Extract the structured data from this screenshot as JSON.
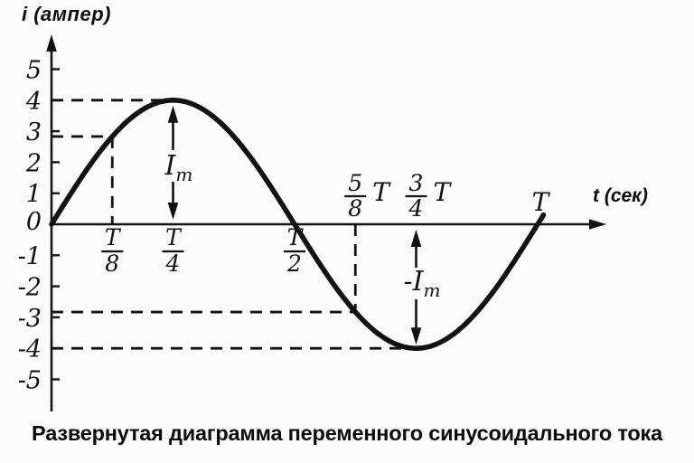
{
  "figure": {
    "y_axis_title": "i (ампер)",
    "x_axis_title": "t (сек)",
    "caption": "Развернутая диаграмма переменного синусоидального тока"
  },
  "colors": {
    "ink": "#121212",
    "background": "#fcfcfb"
  },
  "chart_data": {
    "type": "line",
    "title": "Развернутая диаграмма переменного синусоидального тока",
    "xlabel": "t (сек)",
    "ylabel": "i (ампер)",
    "curve": "sine",
    "amplitude": 4,
    "period_symbol": "T",
    "x_range_periods": [
      0,
      1.015
    ],
    "ylim": [
      -5.8,
      5.8
    ],
    "grid": false,
    "y_ticks": [
      5,
      4,
      3,
      2,
      1,
      0,
      -1,
      -2,
      -3,
      -4,
      -5
    ],
    "key_points": [
      {
        "t_label": "0",
        "t": 0,
        "i": 0
      },
      {
        "t_label": "T/8",
        "t": 0.125,
        "i": 2.83
      },
      {
        "t_label": "T/4",
        "t": 0.25,
        "i": 4
      },
      {
        "t_label": "T/2",
        "t": 0.5,
        "i": 0
      },
      {
        "t_label": "5/8 T",
        "t": 0.625,
        "i": -2.83
      },
      {
        "t_label": "3/4 T",
        "t": 0.75,
        "i": -4
      },
      {
        "t_label": "T",
        "t": 1,
        "i": 0
      }
    ],
    "x_tick_labels": [
      {
        "kind": "fraction",
        "numerator": "T",
        "denominator": "8",
        "suffix": "",
        "t": 0.125,
        "side": "below"
      },
      {
        "kind": "fraction",
        "numerator": "T",
        "denominator": "4",
        "suffix": "",
        "t": 0.25,
        "side": "below"
      },
      {
        "kind": "fraction",
        "numerator": "T",
        "denominator": "2",
        "suffix": "",
        "t": 0.5,
        "side": "below"
      },
      {
        "kind": "fraction",
        "numerator": "5",
        "denominator": "8",
        "suffix": "T",
        "t": 0.625,
        "side": "above"
      },
      {
        "kind": "fraction",
        "numerator": "3",
        "denominator": "4",
        "suffix": "T",
        "t": 0.75,
        "side": "above"
      },
      {
        "kind": "plain",
        "label": "T",
        "t": 1,
        "side": "above"
      }
    ],
    "dashed_guides": [
      {
        "type": "h",
        "i": 4,
        "from_t": 0,
        "to_t": 0.243
      },
      {
        "type": "h",
        "i": 2.83,
        "from_t": 0,
        "to_t": 0.125
      },
      {
        "type": "v",
        "t": 0.125,
        "from_i": 2.83,
        "to_i": 0
      },
      {
        "type": "v",
        "t": 0.625,
        "from_i": 0,
        "to_i": -2.83
      },
      {
        "type": "h",
        "i": -2.83,
        "from_t": 0,
        "to_t": 0.625
      },
      {
        "type": "h",
        "i": -4,
        "from_t": 0,
        "to_t": 0.737
      }
    ],
    "amplitude_arrows": [
      {
        "t": 0.25,
        "value": 4,
        "label_base": "I",
        "label_sub": "m"
      },
      {
        "t": 0.75,
        "value": -4,
        "label_base": "-I",
        "label_sub": "m"
      }
    ]
  }
}
